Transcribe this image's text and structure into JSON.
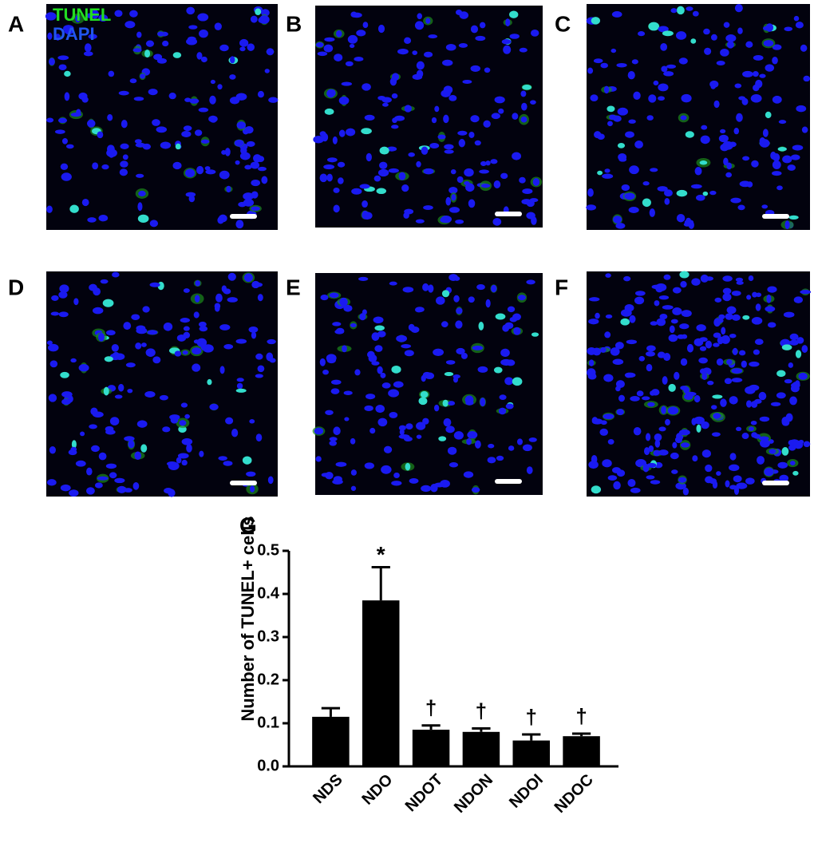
{
  "panels": [
    {
      "label": "A"
    },
    {
      "label": "B"
    },
    {
      "label": "C"
    },
    {
      "label": "D"
    },
    {
      "label": "E"
    },
    {
      "label": "F"
    }
  ],
  "stain_labels": [
    {
      "text": "TUNEL",
      "color": "#22dd22"
    },
    {
      "text": "DAPI",
      "color": "#2255ee"
    }
  ],
  "chart_data": {
    "type": "bar",
    "panel_label": "G",
    "ylabel": "Number of TUNEL+ cells",
    "categories": [
      "NDS",
      "NDO",
      "NDOT",
      "NDON",
      "NDOI",
      "NDOC"
    ],
    "values": [
      0.115,
      0.385,
      0.085,
      0.08,
      0.06,
      0.07
    ],
    "errors": [
      0.02,
      0.077,
      0.01,
      0.008,
      0.014,
      0.006
    ],
    "annotations": [
      null,
      "*",
      "†",
      "†",
      "†",
      "†"
    ],
    "color": "#000000",
    "ylim": [
      0,
      0.5
    ],
    "yticks": [
      {
        "value": 0,
        "label": "0.0"
      },
      0.1,
      0.2,
      0.3,
      0.4,
      0.5
    ]
  }
}
